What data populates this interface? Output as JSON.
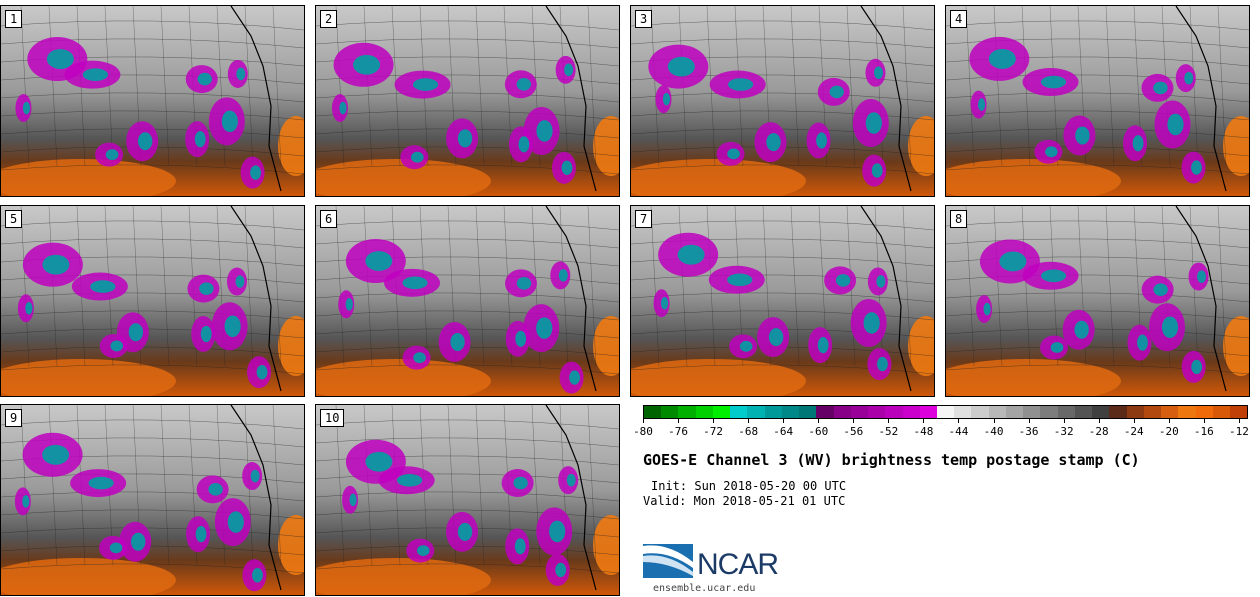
{
  "panels": [
    {
      "label": "1"
    },
    {
      "label": "2"
    },
    {
      "label": "3"
    },
    {
      "label": "4"
    },
    {
      "label": "5"
    },
    {
      "label": "6"
    },
    {
      "label": "7"
    },
    {
      "label": "8"
    },
    {
      "label": "9"
    },
    {
      "label": "10"
    }
  ],
  "colorbar": {
    "colors": [
      "#006400",
      "#008a00",
      "#00b000",
      "#00d000",
      "#00ee00",
      "#00cccc",
      "#00b2b2",
      "#009999",
      "#008888",
      "#007777",
      "#660066",
      "#880088",
      "#990099",
      "#aa00aa",
      "#bb00bb",
      "#cc00cc",
      "#dd00dd",
      "#f5f5f5",
      "#e0e0e0",
      "#cccccc",
      "#b8b8b8",
      "#a4a4a4",
      "#909090",
      "#7c7c7c",
      "#686868",
      "#545454",
      "#404040",
      "#5c2a18",
      "#8b3a12",
      "#b24a10",
      "#d65e10",
      "#ee7710",
      "#f06a0a",
      "#d85a08",
      "#c04008"
    ],
    "ticks": [
      "-80",
      "-76",
      "-72",
      "-68",
      "-64",
      "-60",
      "-56",
      "-52",
      "-48",
      "-44",
      "-40",
      "-36",
      "-32",
      "-28",
      "-24",
      "-20",
      "-16",
      "-12"
    ]
  },
  "title": "GOES-E Channel 3 (WV) brightness temp postage stamp (C)",
  "init": "Init: Sun 2018-05-20 00 UTC",
  "valid": "Valid: Mon 2018-05-21 01 UTC",
  "logo": {
    "text": "NCAR"
  },
  "site": "ensemble.ucar.edu"
}
